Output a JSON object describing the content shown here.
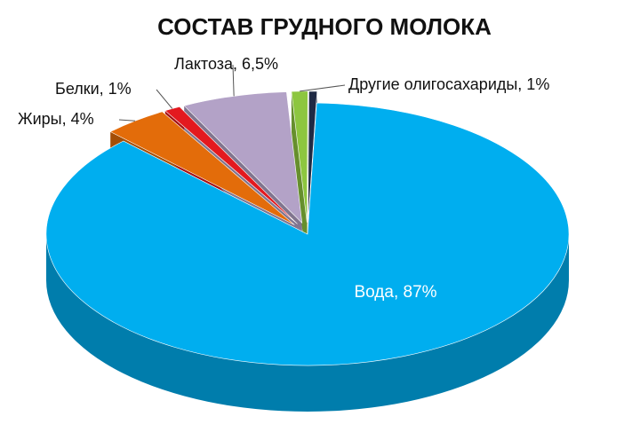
{
  "chart_data": {
    "type": "pie3d",
    "title": "СОСТАВ ГРУДНОГО МОЛОКА",
    "values": [
      87,
      4,
      1,
      6.5,
      1,
      0.5
    ],
    "value_labels": [
      "Вода, 87%",
      "Жиры, 4%",
      "Белки, 1%",
      "Лактоза, 6,5%",
      "Другие олигосахариды, 1%",
      null
    ],
    "colors": [
      "#00aeef",
      "#e36c0a",
      "#e3191f",
      "#b3a2c7",
      "#8dc63f",
      "#1f2a44"
    ]
  }
}
